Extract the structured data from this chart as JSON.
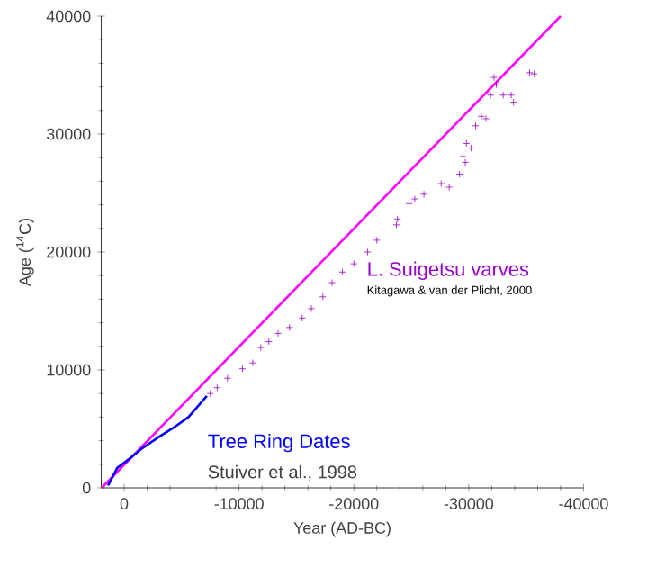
{
  "chart_data": {
    "type": "scatter",
    "xlabel": "Year (AD-BC)",
    "ylabel": "Age ($^{14}$C)",
    "xlim": [
      2000,
      -40000
    ],
    "xticks": [
      0,
      -10000,
      -20000,
      -30000,
      -40000
    ],
    "ylim": [
      0,
      40000
    ],
    "yticks": [
      0,
      10000,
      20000,
      30000,
      40000
    ],
    "grid": false,
    "series": [
      {
        "type": "line",
        "marker": "none",
        "color": "#ff00ff",
        "x": [
          1950,
          -38000
        ],
        "values": [
          0,
          40000
        ]
      },
      {
        "type": "line",
        "marker": "none",
        "name": "Tree Ring Dates",
        "color": "#0000ff",
        "x": [
          1400,
          600,
          -500,
          -1500,
          -3000,
          -4300,
          -5600,
          -6400,
          -7200
        ],
        "values": [
          200,
          1700,
          2500,
          3300,
          4300,
          5100,
          6000,
          6900,
          7800
        ]
      },
      {
        "marker": "cross",
        "name": "L. Suigetsu varves",
        "color": "#9900cc",
        "x": [
          -7500,
          -8100,
          -9000,
          -10300,
          -11200,
          -11900,
          -12600,
          -13400,
          -14400,
          -15500,
          -16300,
          -17300,
          -18100,
          -19000,
          -20000,
          -21200,
          -22000,
          -23700,
          -23800,
          -24800,
          -25300,
          -26100,
          -27600,
          -28300,
          -29200,
          -29500,
          -29700,
          -29800,
          -30200,
          -30600,
          -31100,
          -31500,
          -31900,
          -32200,
          -32400,
          -33000,
          -33700,
          -33900,
          -35300,
          -35700
        ],
        "values": [
          8000,
          8500,
          9300,
          10100,
          10600,
          11900,
          12400,
          13100,
          13600,
          14400,
          15200,
          16200,
          17400,
          18300,
          19000,
          20000,
          21000,
          22300,
          22800,
          24100,
          24500,
          24900,
          25800,
          25500,
          26600,
          28100,
          27600,
          29200,
          28800,
          30700,
          31500,
          31300,
          33300,
          34800,
          34200,
          33300,
          33300,
          32700,
          35200,
          35100
        ]
      }
    ],
    "annotations": [
      "Kitagawa & van der Plicht, 2000",
      "Stuiver et al., 1998"
    ]
  }
}
